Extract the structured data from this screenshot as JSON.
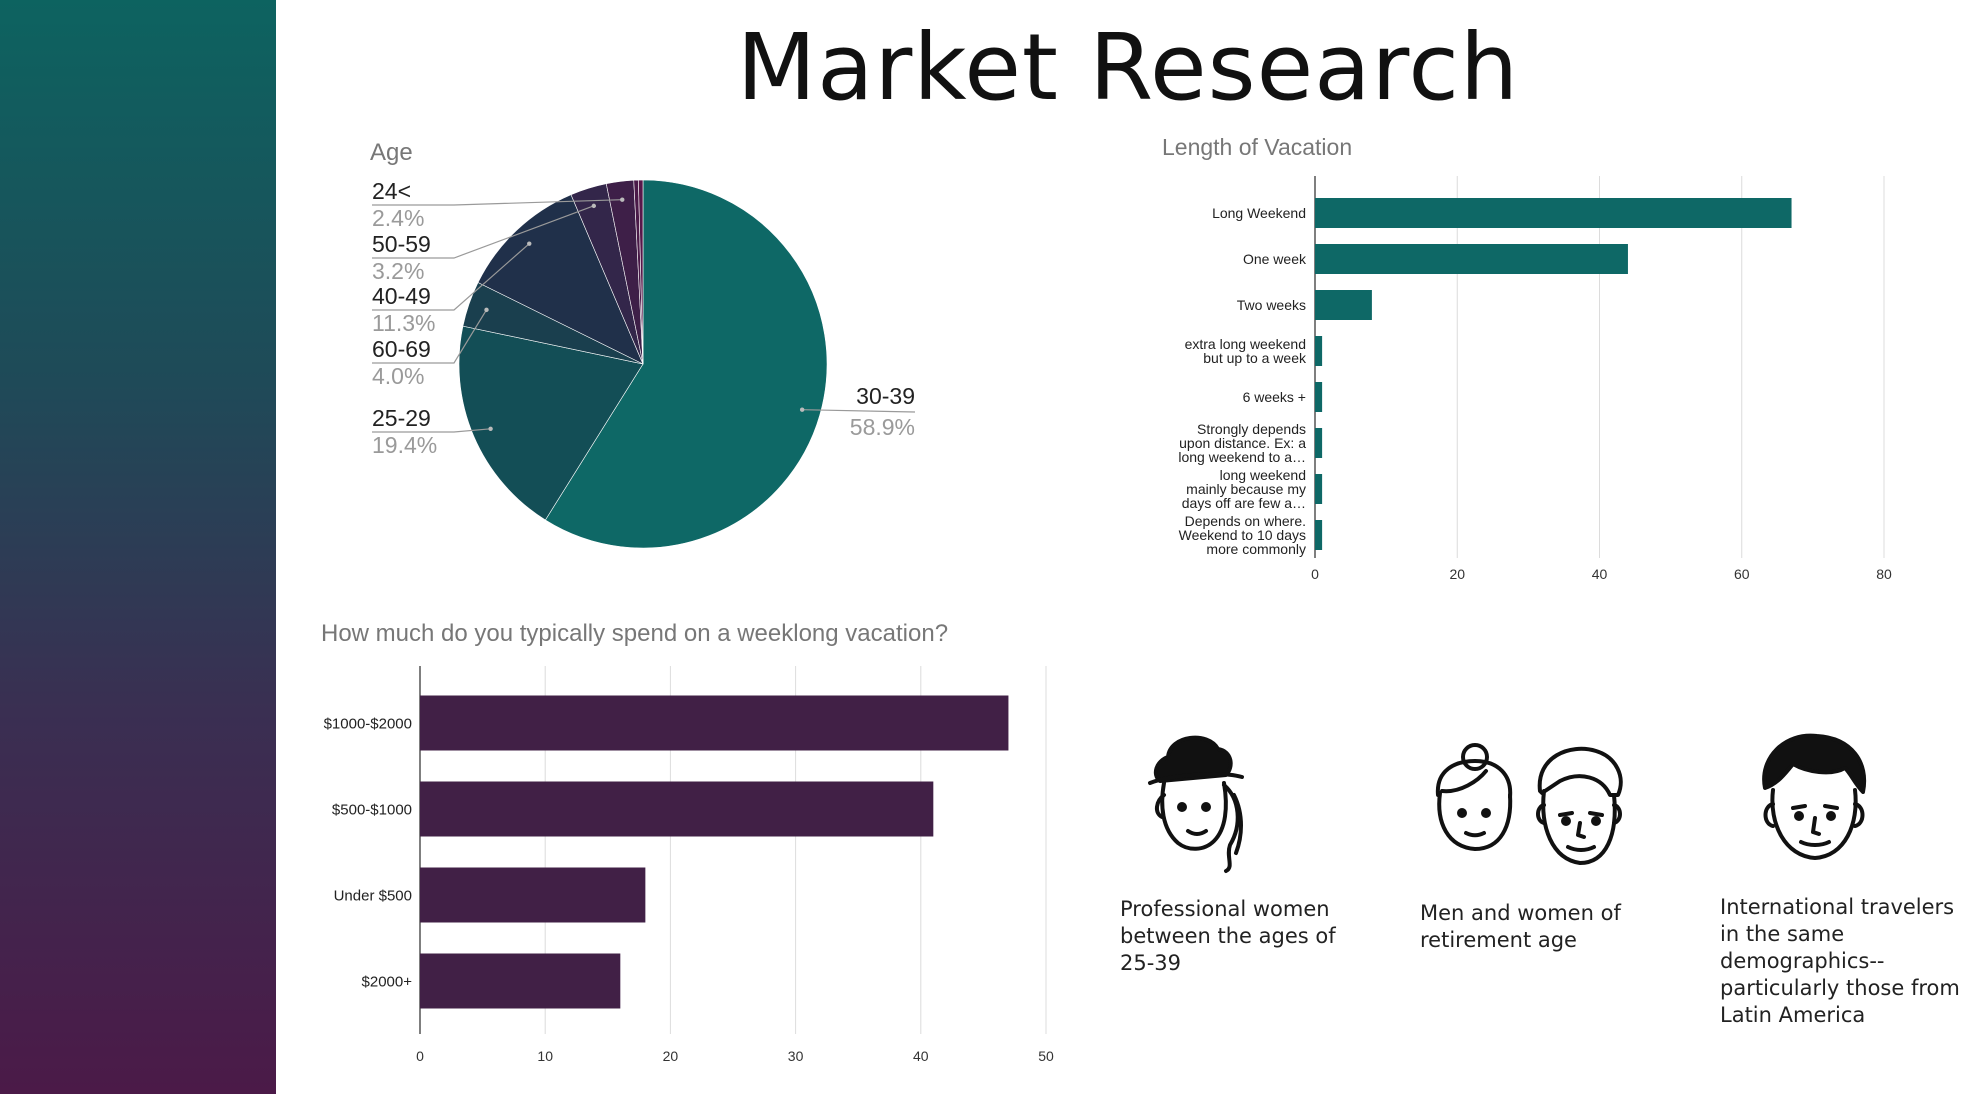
{
  "slide": {
    "title": "Market Research"
  },
  "colors": {
    "teal": "#0e6866",
    "plum": "#412046",
    "sidebar_top": "#0d6360",
    "sidebar_bottom": "#4b1a48"
  },
  "personas": [
    {
      "caption": "Professional women between the ages of 25-39",
      "icon": "woman-hat-icon"
    },
    {
      "caption": "Men and women of retirement age",
      "icon": "couple-icon"
    },
    {
      "caption": "International travelers in the same demographics--particularly those from Latin America",
      "icon": "young-man-icon"
    }
  ],
  "chart_data": [
    {
      "type": "pie",
      "title": "Age",
      "slices": [
        {
          "label": "30-39",
          "value": 58.9,
          "pct": "58.9%",
          "color": "#0e6866"
        },
        {
          "label": "25-29",
          "value": 19.4,
          "pct": "19.4%",
          "color": "#134e56"
        },
        {
          "label": "60-69",
          "value": 4.0,
          "pct": "4.0%",
          "color": "#1a3f4e"
        },
        {
          "label": "40-49",
          "value": 11.3,
          "pct": "11.3%",
          "color": "#20304a"
        },
        {
          "label": "50-59",
          "value": 3.2,
          "pct": "3.2%",
          "color": "#33264a"
        },
        {
          "label": "24<",
          "value": 2.4,
          "pct": "2.4%",
          "color": "#3e1f48"
        },
        {
          "label": "",
          "value": 0.4,
          "pct": "",
          "color": "#4a1a48"
        },
        {
          "label": "",
          "value": 0.4,
          "pct": "",
          "color": "#57184a"
        }
      ]
    },
    {
      "type": "bar",
      "orientation": "horizontal",
      "title": "Length of Vacation",
      "categories": [
        [
          "Long Weekend"
        ],
        [
          "One week"
        ],
        [
          "Two weeks"
        ],
        [
          "extra long weekend",
          "but up to a week"
        ],
        [
          "6 weeks +"
        ],
        [
          "Strongly depends",
          "upon distance. Ex: a",
          "long weekend to a…"
        ],
        [
          "long weekend",
          "mainly because my",
          "days off are few a…"
        ],
        [
          "Depends on where.",
          "Weekend to 10 days",
          "more commonly"
        ]
      ],
      "values": [
        67,
        44,
        8,
        1,
        1,
        1,
        1,
        1
      ],
      "xlim": [
        0,
        80
      ],
      "xticks": [
        "0",
        "20",
        "40",
        "60",
        "80"
      ],
      "grid": true,
      "color": "#0e6866"
    },
    {
      "type": "bar",
      "orientation": "horizontal",
      "title": "How much do you typically spend on a weeklong vacation?",
      "categories": [
        "$1000-$2000",
        "$500-$1000",
        "Under $500",
        "$2000+"
      ],
      "values": [
        47,
        41,
        18,
        16
      ],
      "xlim": [
        0,
        50
      ],
      "xticks": [
        "0",
        "10",
        "20",
        "30",
        "40",
        "50"
      ],
      "grid": true,
      "color": "#412046"
    }
  ]
}
